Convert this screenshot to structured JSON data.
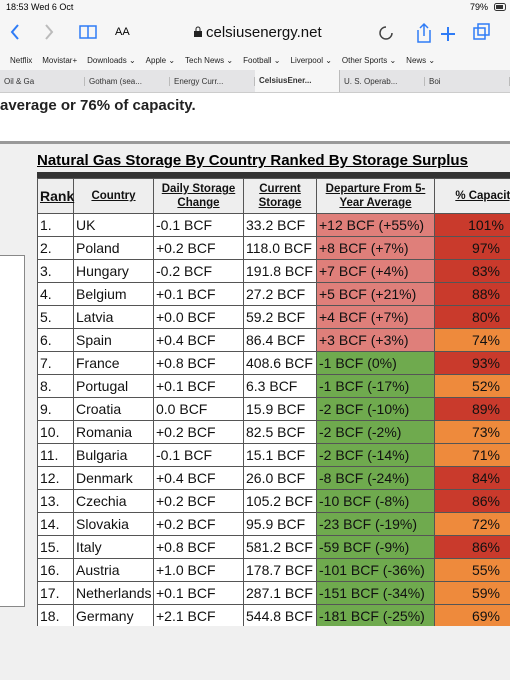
{
  "status_bar": {
    "time": "18:53  Wed 6 Oct",
    "battery": "79%"
  },
  "browser": {
    "text_size": "AA",
    "url": "celsiusenergy.net",
    "bookmarks": [
      "Netflix",
      "Movistar+",
      "Downloads ⌄",
      "Apple ⌄",
      "Tech News ⌄",
      "Football ⌄",
      "Liverpool ⌄",
      "Other Sports ⌄",
      "News ⌄"
    ],
    "tabs": [
      "Oil & Ga",
      "Gotham (sea...",
      "Energy Curr...",
      "CelsiusEner...",
      "U. S. Operab...",
      "Boi"
    ],
    "active_tab": 3
  },
  "page": {
    "intro": "average or 76% of capacity.",
    "table": {
      "title": "Natural Gas Storage By Country Ranked By Storage Surplus",
      "columns": [
        "Rank",
        "Country",
        "Daily Storage Change",
        "Current Storage",
        "Departure From 5-Year Average",
        "% Capacity"
      ],
      "rows": [
        [
          "1.",
          "UK",
          "-0.1 BCF",
          "33.2 BCF",
          "+12 BCF (+55%)",
          "101%"
        ],
        [
          "2.",
          "Poland",
          "+0.2 BCF",
          "118.0 BCF",
          "+8 BCF (+7%)",
          "97%"
        ],
        [
          "3.",
          "Hungary",
          "-0.2 BCF",
          "191.8 BCF",
          "+7 BCF (+4%)",
          "83%"
        ],
        [
          "4.",
          "Belgium",
          "+0.1 BCF",
          "27.2 BCF",
          "+5 BCF (+21%)",
          "88%"
        ],
        [
          "5.",
          "Latvia",
          "+0.0 BCF",
          "59.2 BCF",
          "+4 BCF (+7%)",
          "80%"
        ],
        [
          "6.",
          "Spain",
          "+0.4 BCF",
          "86.4 BCF",
          "+3 BCF (+3%)",
          "74%"
        ],
        [
          "7.",
          "France",
          "+0.8 BCF",
          "408.6 BCF",
          "-1 BCF (0%)",
          "93%"
        ],
        [
          "8.",
          "Portugal",
          "+0.1 BCF",
          "6.3 BCF",
          "-1 BCF (-17%)",
          "52%"
        ],
        [
          "9.",
          "Croatia",
          "0.0 BCF",
          "15.9 BCF",
          "-2 BCF (-10%)",
          "89%"
        ],
        [
          "10.",
          "Romania",
          "+0.2 BCF",
          "82.5 BCF",
          "-2 BCF (-2%)",
          "73%"
        ],
        [
          "11.",
          "Bulgaria",
          "-0.1 BCF",
          "15.1 BCF",
          "-2 BCF (-14%)",
          "71%"
        ],
        [
          "12.",
          "Denmark",
          "+0.4 BCF",
          "26.0 BCF",
          "-8 BCF (-24%)",
          "84%"
        ],
        [
          "13.",
          "Czechia",
          "+0.2 BCF",
          "105.2 BCF",
          "-10 BCF (-8%)",
          "86%"
        ],
        [
          "14.",
          "Slovakia",
          "+0.2 BCF",
          "95.9 BCF",
          "-23 BCF (-19%)",
          "72%"
        ],
        [
          "15.",
          "Italy",
          "+0.8 BCF",
          "581.2 BCF",
          "-59 BCF (-9%)",
          "86%"
        ],
        [
          "16.",
          "Austria",
          "+1.0 BCF",
          "178.7 BCF",
          "-101 BCF (-36%)",
          "55%"
        ],
        [
          "17.",
          "Netherlands",
          "+0.1 BCF",
          "287.1 BCF",
          "-151 BCF (-34%)",
          "59%"
        ],
        [
          "18.",
          "Germany",
          "+2.1 BCF",
          "544.8 BCF",
          "-181 BCF (-25%)",
          "69%"
        ]
      ],
      "row_colors": [
        [
          "#df7f7a",
          "#c93a2c"
        ],
        [
          "#df7f7a",
          "#c93a2c"
        ],
        [
          "#df7f7a",
          "#c93a2c"
        ],
        [
          "#df7f7a",
          "#c93a2c"
        ],
        [
          "#df7f7a",
          "#c93a2c"
        ],
        [
          "#df7f7a",
          "#ee8a3c"
        ],
        [
          "#6faa4e",
          "#c93a2c"
        ],
        [
          "#6faa4e",
          "#ee8a3c"
        ],
        [
          "#6faa4e",
          "#c93a2c"
        ],
        [
          "#6faa4e",
          "#ee8a3c"
        ],
        [
          "#6faa4e",
          "#ee8a3c"
        ],
        [
          "#6faa4e",
          "#c93a2c"
        ],
        [
          "#6faa4e",
          "#c93a2c"
        ],
        [
          "#6faa4e",
          "#ee8a3c"
        ],
        [
          "#6faa4e",
          "#c93a2c"
        ],
        [
          "#6faa4e",
          "#ee8a3c"
        ],
        [
          "#6faa4e",
          "#ee8a3c"
        ],
        [
          "#6faa4e",
          "#ee8a3c"
        ]
      ]
    }
  }
}
